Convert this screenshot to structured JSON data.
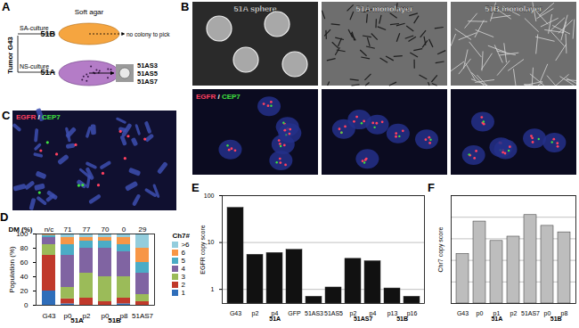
{
  "diagram_a": {
    "label": "A",
    "tumor": "Tumor G43",
    "medium": "Soft agar",
    "sa_culture": "SA-culture",
    "sa_line": "51B",
    "sa_result": "no colony to pick",
    "ns_culture": "NS-culture",
    "ns_line": "51A",
    "clones": [
      "51AS3",
      "51AS5",
      "51AS7"
    ]
  },
  "images_b": {
    "label": "B",
    "titles": [
      "51A sphere",
      "51A monolayer",
      "51B monolayer"
    ],
    "stain": [
      {
        "text": "EGFR",
        "color": "#ff4060"
      },
      {
        "text": " / ",
        "color": "#ffffff"
      },
      {
        "text": "CEP7",
        "color": "#40e040"
      }
    ]
  },
  "image_c": {
    "label": "C",
    "stain": [
      {
        "text": "EGFR",
        "color": "#ff4060"
      },
      {
        "text": " / ",
        "color": "#ffffff"
      },
      {
        "text": "CEP7",
        "color": "#40e040"
      }
    ]
  },
  "chart_data": [
    {
      "label": "D",
      "type": "bar",
      "stacked": true,
      "y_label": "Population (%)",
      "categories": [
        "G43",
        "p0",
        "p2",
        "p0",
        "p8",
        "51AS7"
      ],
      "groups": [
        null,
        "51A",
        "51A",
        "51B",
        "51B",
        null
      ],
      "ylim": [
        0,
        100
      ],
      "yticks": [
        0,
        20,
        40,
        60,
        80,
        100
      ],
      "legend": "right",
      "legend_title": "Ch7#",
      "dm": {
        "label": "DM (%)",
        "values": [
          null,
          71,
          77,
          70,
          0,
          29
        ],
        "null_label": "n/c"
      },
      "series": [
        {
          "name": "1",
          "color": "#2f6eba",
          "values": [
            20,
            2,
            0,
            0,
            2,
            0
          ]
        },
        {
          "name": "2",
          "color": "#c0392b",
          "values": [
            50,
            7,
            10,
            5,
            8,
            5
          ]
        },
        {
          "name": "3",
          "color": "#9bbb59",
          "values": [
            15,
            16,
            35,
            35,
            30,
            10
          ]
        },
        {
          "name": "4",
          "color": "#8064a2",
          "values": [
            10,
            45,
            35,
            40,
            35,
            30
          ]
        },
        {
          "name": "5",
          "color": "#4bacc6",
          "values": [
            3,
            15,
            10,
            10,
            10,
            15
          ]
        },
        {
          "name": "6",
          "color": "#f79646",
          "values": [
            2,
            10,
            5,
            5,
            10,
            20
          ]
        },
        {
          "name": ">6",
          "color": "#93cddd",
          "values": [
            0,
            5,
            5,
            5,
            5,
            20
          ]
        }
      ]
    },
    {
      "label": "E",
      "type": "bar",
      "log": "y",
      "grid": true,
      "y_label": "EGFR copy score",
      "categories": [
        "G43",
        "p2",
        "p4",
        "GFP",
        "51AS3",
        "51AS5",
        "p2",
        "p4",
        "p13",
        "p16"
      ],
      "groups": [
        null,
        "51A",
        "51A",
        "51A",
        null,
        null,
        "51AS7",
        "51AS7",
        "51B",
        "51B"
      ],
      "values": [
        55,
        5.5,
        6,
        7,
        0.7,
        1.1,
        4.5,
        4,
        1.05,
        0.7
      ],
      "color": "#111111",
      "ylim": [
        0.5,
        100
      ],
      "yticks": [
        1,
        10,
        100
      ]
    },
    {
      "label": "F",
      "type": "bar",
      "grid": true,
      "tick_labels": "x",
      "y_label": "Chr7 copy score",
      "categories": [
        "G43",
        "p0",
        "p1",
        "p2",
        "51AS7",
        "p0",
        "p8"
      ],
      "groups": [
        null,
        "51A",
        "51A",
        "51A",
        null,
        "51B",
        "51B"
      ],
      "values": [
        2.3,
        3.8,
        2.9,
        3.1,
        4.1,
        3.6,
        3.3
      ],
      "color": "#bdbdbd",
      "ylim": [
        0,
        5
      ],
      "yticks": [
        0,
        1,
        2,
        3,
        4,
        5
      ]
    }
  ]
}
